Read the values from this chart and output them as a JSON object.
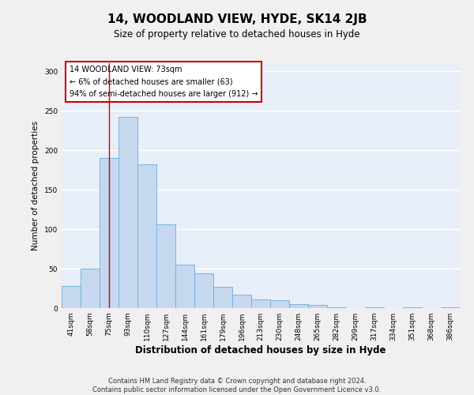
{
  "title": "14, WOODLAND VIEW, HYDE, SK14 2JB",
  "subtitle": "Size of property relative to detached houses in Hyde",
  "xlabel": "Distribution of detached houses by size in Hyde",
  "ylabel": "Number of detached properties",
  "bar_color": "#c5d8f0",
  "bar_edge_color": "#6aaed6",
  "background_color": "#e8eef8",
  "grid_color": "#ffffff",
  "fig_background": "#f0f0f0",
  "categories": [
    "41sqm",
    "58sqm",
    "75sqm",
    "93sqm",
    "110sqm",
    "127sqm",
    "144sqm",
    "161sqm",
    "179sqm",
    "196sqm",
    "213sqm",
    "230sqm",
    "248sqm",
    "265sqm",
    "282sqm",
    "299sqm",
    "317sqm",
    "334sqm",
    "351sqm",
    "368sqm",
    "386sqm"
  ],
  "values": [
    28,
    50,
    190,
    242,
    182,
    106,
    55,
    44,
    27,
    17,
    11,
    10,
    5,
    4,
    1,
    0,
    1,
    0,
    1,
    0,
    1
  ],
  "ylim": [
    0,
    310
  ],
  "yticks": [
    0,
    50,
    100,
    150,
    200,
    250,
    300
  ],
  "vline_x": 2,
  "vline_color": "#cc0000",
  "annotation_title": "14 WOODLAND VIEW: 73sqm",
  "annotation_line1": "← 6% of detached houses are smaller (63)",
  "annotation_line2": "94% of semi-detached houses are larger (912) →",
  "annotation_box_edgecolor": "#cc0000",
  "footer_line1": "Contains HM Land Registry data © Crown copyright and database right 2024.",
  "footer_line2": "Contains public sector information licensed under the Open Government Licence v3.0.",
  "title_fontsize": 11,
  "subtitle_fontsize": 8.5,
  "xlabel_fontsize": 8.5,
  "ylabel_fontsize": 7.5,
  "tick_fontsize": 6.5,
  "annotation_fontsize": 7,
  "footer_fontsize": 6
}
